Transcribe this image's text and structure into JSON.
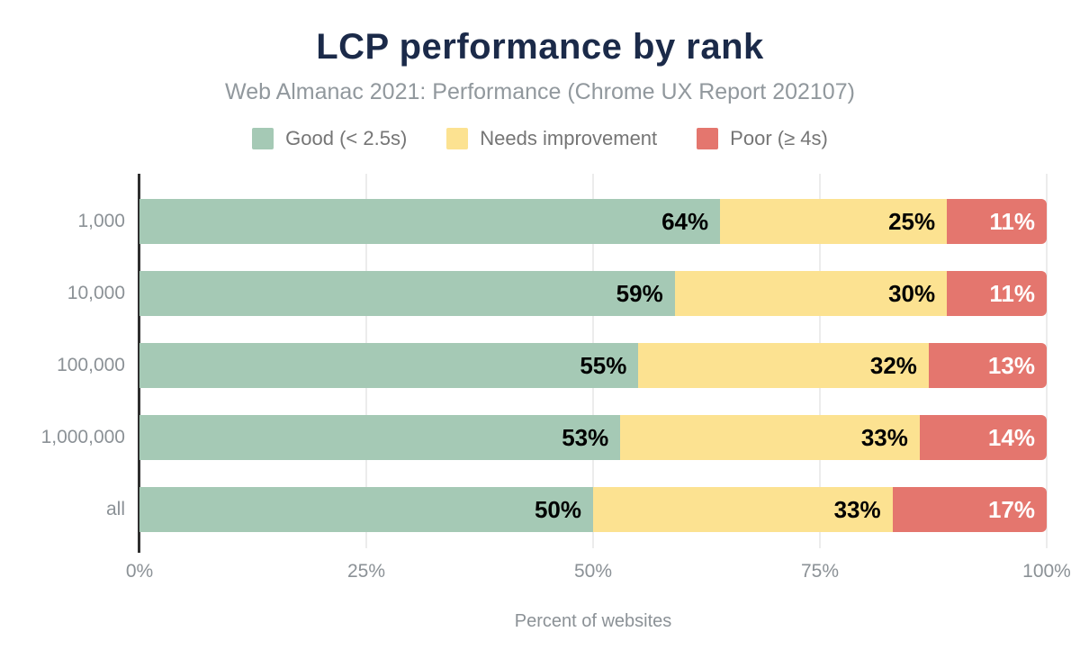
{
  "chart_data": {
    "type": "bar",
    "orientation": "horizontal",
    "stacked": true,
    "title": "LCP performance by rank",
    "subtitle": "Web Almanac 2021: Performance (Chrome UX Report 202107)",
    "xlabel": "Percent of websites",
    "categories": [
      "1,000",
      "10,000",
      "100,000",
      "1,000,000",
      "all"
    ],
    "series": [
      {
        "key": "good",
        "name": "Good (< 2.5s)",
        "color": "#a5c9b5",
        "label_color": "#000000",
        "values": [
          64,
          59,
          55,
          53,
          50
        ],
        "labels": [
          "64%",
          "59%",
          "55%",
          "53%",
          "50%"
        ]
      },
      {
        "key": "needs-improvement",
        "name": "Needs improvement",
        "color": "#fce291",
        "label_color": "#000000",
        "values": [
          25,
          30,
          32,
          33,
          33
        ],
        "labels": [
          "25%",
          "30%",
          "32%",
          "33%",
          "33%"
        ]
      },
      {
        "key": "poor",
        "name": "Poor (≥ 4s)",
        "color": "#e4766e",
        "label_color": "#ffffff",
        "values": [
          11,
          11,
          13,
          14,
          17
        ],
        "labels": [
          "11%",
          "11%",
          "13%",
          "14%",
          "17%"
        ]
      }
    ],
    "xlim": [
      0,
      100
    ],
    "x_tick_values": [
      0,
      25,
      50,
      75,
      100
    ],
    "x_tick_labels": [
      "0%",
      "25%",
      "50%",
      "75%",
      "100%"
    ],
    "grid": "vertical",
    "legend_position": "top"
  },
  "colors": {
    "background": "#ffffff",
    "title": "#1b2a49",
    "subtitle": "#91989d",
    "axis_text": "#8b9196",
    "legend_text": "#757575",
    "axis_line": "#2f2f2f",
    "gridline": "#ececec"
  }
}
